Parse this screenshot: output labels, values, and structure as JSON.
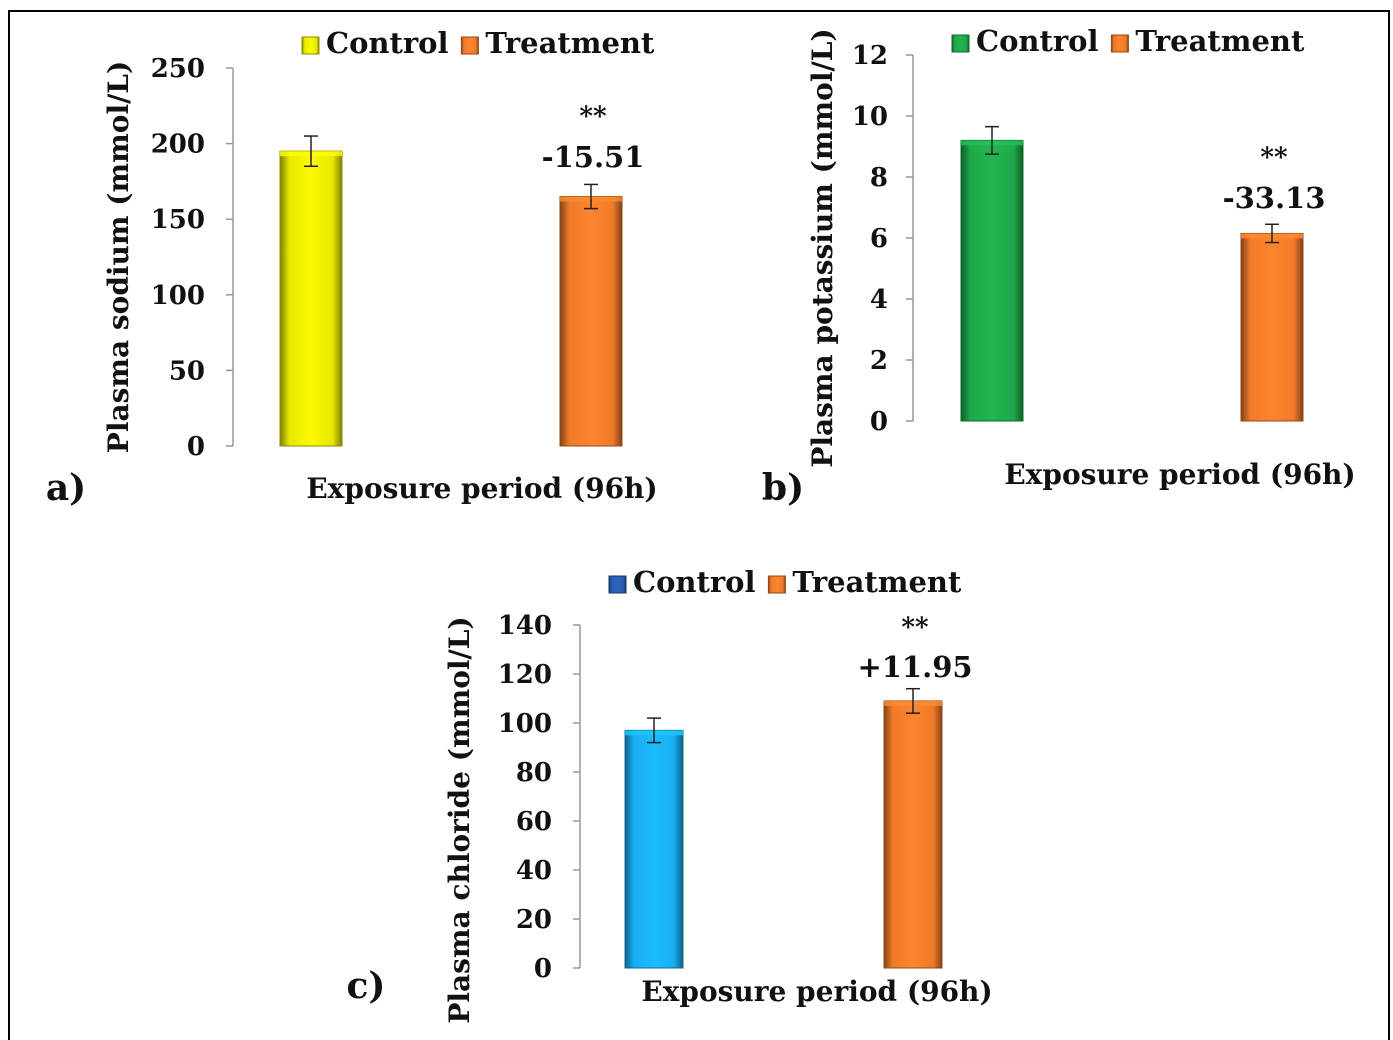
{
  "chart_data": [
    {
      "type": "bar",
      "panel_label": "a)",
      "categories": [
        "Control",
        "Treatment"
      ],
      "values": [
        195,
        165
      ],
      "errors": [
        10,
        8
      ],
      "colors": [
        "#e8e800",
        "#f07a2a"
      ],
      "xlabel": "Exposure period (96h)",
      "ylabel": "Plasma sodium (mmol/L)",
      "ylim": [
        0,
        250
      ],
      "yticks": [
        "0",
        "50",
        "100",
        "150",
        "200",
        "250"
      ],
      "legend": [
        "Control",
        "Treatment"
      ],
      "legend_placement": "top",
      "annotations": [
        {
          "category": "Treatment",
          "stars": "**",
          "change": "-15.51"
        }
      ]
    },
    {
      "type": "bar",
      "panel_label": "b)",
      "categories": [
        "Control",
        "Treatment"
      ],
      "values": [
        9.2,
        6.15
      ],
      "errors": [
        0.45,
        0.3
      ],
      "colors": [
        "#1fa84a",
        "#f07a2a"
      ],
      "xlabel": "Exposure period (96h)",
      "ylabel": "Plasma potassium (mmol/L)",
      "ylim": [
        0,
        12
      ],
      "yticks": [
        "0",
        "2",
        "4",
        "6",
        "8",
        "10",
        "12"
      ],
      "legend": [
        "Control",
        "Treatment"
      ],
      "legend_placement": "top",
      "annotations": [
        {
          "category": "Treatment",
          "stars": "**",
          "change": "-33.13"
        }
      ]
    },
    {
      "type": "bar",
      "panel_label": "c)",
      "categories": [
        "Control",
        "Treatment"
      ],
      "values": [
        97,
        109
      ],
      "errors": [
        5,
        5
      ],
      "colors": [
        "#19aef0",
        "#f07a2a"
      ],
      "xlabel": "Exposure period (96h)",
      "ylabel": "Plasma chloride (mmol/L)",
      "ylim": [
        0,
        140
      ],
      "yticks": [
        "0",
        "20",
        "40",
        "60",
        "80",
        "100",
        "120",
        "140"
      ],
      "legend": [
        "Control",
        "Treatment"
      ],
      "legend_colors": [
        "#2a5db0",
        "#f07a2a"
      ],
      "legend_placement": "top",
      "annotations": [
        {
          "category": "Treatment",
          "stars": "**",
          "change": "+11.95"
        }
      ]
    }
  ]
}
